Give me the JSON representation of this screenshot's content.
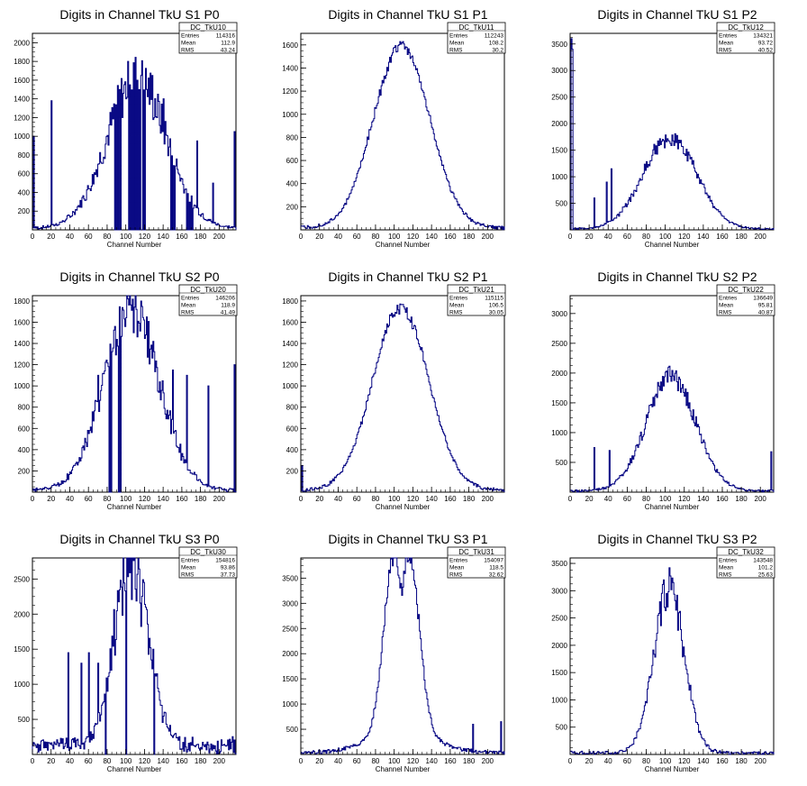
{
  "colors": {
    "histogram_line": "#000080",
    "axis": "#000000",
    "background": "#ffffff"
  },
  "chart_data": [
    {
      "type": "histogram",
      "title": "Digits in Channel TkU S1 P0",
      "xlabel": "Channel Number",
      "ylabel": "",
      "xlim": [
        0,
        218
      ],
      "ylim": [
        0,
        2100
      ],
      "yticks": [
        200,
        400,
        600,
        800,
        1000,
        1200,
        1400,
        1600,
        1800,
        2000
      ],
      "stats": {
        "name": "DC_TkU10",
        "entries": "114316",
        "mean": "112.9",
        "rms": "43.24"
      },
      "profile": {
        "kind": "gauss",
        "peak": 1600,
        "center": 112,
        "sigma": 32
      },
      "spikes": [
        [
          1,
          1000
        ],
        [
          20,
          1380
        ],
        [
          88,
          1000
        ],
        [
          96,
          1200
        ],
        [
          100,
          1400
        ],
        [
          104,
          1550
        ],
        [
          111,
          1550
        ],
        [
          116,
          1650
        ],
        [
          122,
          1500
        ],
        [
          128,
          1650
        ],
        [
          134,
          1450
        ],
        [
          140,
          1400
        ],
        [
          150,
          1150
        ],
        [
          176,
          950
        ],
        [
          193,
          500
        ],
        [
          216,
          1050
        ]
      ],
      "zeros": [
        [
          88,
          96
        ],
        [
          103,
          116
        ],
        [
          118,
          122
        ],
        [
          148,
          154
        ],
        [
          165,
          172
        ]
      ],
      "edge_spikes": [
        [
          1,
          1000
        ],
        [
          216,
          1050
        ]
      ],
      "noise": 0.18
    },
    {
      "type": "histogram",
      "title": "Digits in Channel TkU S1 P1",
      "xlabel": "Channel Number",
      "ylabel": "",
      "xlim": [
        0,
        218
      ],
      "ylim": [
        0,
        1700
      ],
      "yticks": [
        200,
        400,
        600,
        800,
        1000,
        1200,
        1400,
        1600
      ],
      "stats": {
        "name": "DC_TkU11",
        "entries": "112243",
        "mean": "108.2",
        "rms": "30.2"
      },
      "profile": {
        "kind": "gauss",
        "peak": 1580,
        "center": 108,
        "sigma": 30
      },
      "spikes": [],
      "zeros": [],
      "edge_spikes": [],
      "noise": 0.03
    },
    {
      "type": "histogram",
      "title": "Digits in Channel TkU S1 P2",
      "xlabel": "Channel Number",
      "ylabel": "",
      "xlim": [
        0,
        214
      ],
      "ylim": [
        0,
        3700
      ],
      "yticks": [
        500,
        1000,
        1500,
        2000,
        2500,
        3000,
        3500
      ],
      "stats": {
        "name": "DC_TkU12",
        "entries": "134321",
        "mean": "93.72",
        "rms": "40.52"
      },
      "profile": {
        "kind": "gauss",
        "peak": 1720,
        "center": 105,
        "sigma": 28
      },
      "spikes": [
        [
          1,
          3600
        ],
        [
          2,
          3400
        ],
        [
          25,
          600
        ],
        [
          43,
          1150
        ],
        [
          38,
          900
        ]
      ],
      "zeros": [],
      "edge_spikes": [
        [
          1,
          3600
        ]
      ],
      "noise": 0.1
    },
    {
      "type": "histogram",
      "title": "Digits in Channel TkU S2 P0",
      "xlabel": "Channel Number",
      "ylabel": "",
      "xlim": [
        0,
        218
      ],
      "ylim": [
        0,
        1850
      ],
      "yticks": [
        200,
        400,
        600,
        800,
        1000,
        1200,
        1400,
        1600,
        1800
      ],
      "stats": {
        "name": "DC_TkU20",
        "entries": "146206",
        "mean": "118.9",
        "rms": "41.49"
      },
      "profile": {
        "kind": "gauss",
        "peak": 1700,
        "center": 106,
        "sigma": 30
      },
      "spikes": [
        [
          70,
          1100
        ],
        [
          150,
          1150
        ],
        [
          165,
          1100
        ],
        [
          188,
          1000
        ],
        [
          216,
          1200
        ]
      ],
      "zeros": [
        [
          82,
          86
        ],
        [
          92,
          96
        ]
      ],
      "edge_spikes": [
        [
          216,
          1200
        ]
      ],
      "noise": 0.15
    },
    {
      "type": "histogram",
      "title": "Digits in Channel TkU S2 P1",
      "xlabel": "Channel Number",
      "ylabel": "",
      "xlim": [
        0,
        218
      ],
      "ylim": [
        0,
        1850
      ],
      "yticks": [
        200,
        400,
        600,
        800,
        1000,
        1200,
        1400,
        1600,
        1800
      ],
      "stats": {
        "name": "DC_TkU21",
        "entries": "115115",
        "mean": "106.5",
        "rms": "30.05"
      },
      "profile": {
        "kind": "gauss",
        "peak": 1720,
        "center": 107,
        "sigma": 30
      },
      "spikes": [
        [
          1,
          250
        ]
      ],
      "zeros": [],
      "edge_spikes": [],
      "noise": 0.03
    },
    {
      "type": "histogram",
      "title": "Digits in Channel TkU S2 P2",
      "xlabel": "Channel Number",
      "ylabel": "",
      "xlim": [
        0,
        214
      ],
      "ylim": [
        0,
        3300
      ],
      "yticks": [
        500,
        1000,
        1500,
        2000,
        2500,
        3000
      ],
      "stats": {
        "name": "DC_TkU22",
        "entries": "136649",
        "mean": "95.81",
        "rms": "40.87"
      },
      "profile": {
        "kind": "gauss",
        "peak": 1920,
        "center": 106,
        "sigma": 26
      },
      "spikes": [
        [
          25,
          750
        ],
        [
          41,
          700
        ],
        [
          211,
          680
        ]
      ],
      "zeros": [],
      "edge_spikes": [],
      "noise": 0.1
    },
    {
      "type": "histogram",
      "title": "Digits in Channel TkU S3 P0",
      "xlabel": "Channel Number",
      "ylabel": "",
      "xlim": [
        0,
        218
      ],
      "ylim": [
        0,
        2800
      ],
      "yticks": [
        500,
        1000,
        1500,
        2000,
        2500
      ],
      "stats": {
        "name": "DC_TkU30",
        "entries": "154816",
        "mean": "93.86",
        "rms": "37.73"
      },
      "profile": {
        "kind": "gauss",
        "peak": 2600,
        "center": 106,
        "sigma": 18
      },
      "spikes": [
        [
          38,
          1450
        ],
        [
          52,
          1300
        ],
        [
          60,
          1450
        ],
        [
          70,
          1300
        ],
        [
          80,
          900
        ],
        [
          138,
          700
        ]
      ],
      "zeros": [
        [
          78,
          80
        ],
        [
          100,
          102
        ],
        [
          130,
          132
        ]
      ],
      "edge_spikes": [],
      "noise": 0.2,
      "floor": 500
    },
    {
      "type": "histogram",
      "title": "Digits in Channel TkU S3 P1",
      "xlabel": "Channel Number",
      "ylabel": "",
      "xlim": [
        0,
        218
      ],
      "ylim": [
        0,
        3900
      ],
      "yticks": [
        500,
        1000,
        1500,
        2000,
        2500,
        3000,
        3500
      ],
      "stats": {
        "name": "DC_TkU31",
        "entries": "154097",
        "mean": "118.5",
        "rms": "32.62"
      },
      "profile": {
        "kind": "double",
        "peak": 3700,
        "center": 108,
        "sigma": 11
      },
      "spikes": [
        [
          184,
          600
        ],
        [
          214,
          650
        ]
      ],
      "zeros": [],
      "edge_spikes": [],
      "noise": 0.05
    },
    {
      "type": "histogram",
      "title": "Digits in Channel TkU S3 P2",
      "xlabel": "Channel Number",
      "ylabel": "",
      "xlim": [
        0,
        214
      ],
      "ylim": [
        0,
        3600
      ],
      "yticks": [
        500,
        1000,
        1500,
        2000,
        2500,
        3000,
        3500
      ],
      "stats": {
        "name": "DC_TkU32",
        "entries": "143548",
        "mean": "101.2",
        "rms": "25.63"
      },
      "profile": {
        "kind": "gauss",
        "peak": 3000,
        "center": 104,
        "sigma": 16
      },
      "spikes": [
        [
          104,
          3420
        ],
        [
          92,
          2550
        ]
      ],
      "zeros": [],
      "edge_spikes": [],
      "noise": 0.12
    }
  ],
  "stat_labels": {
    "entries": "Entries",
    "mean": "Mean",
    "rms": "RMS"
  }
}
